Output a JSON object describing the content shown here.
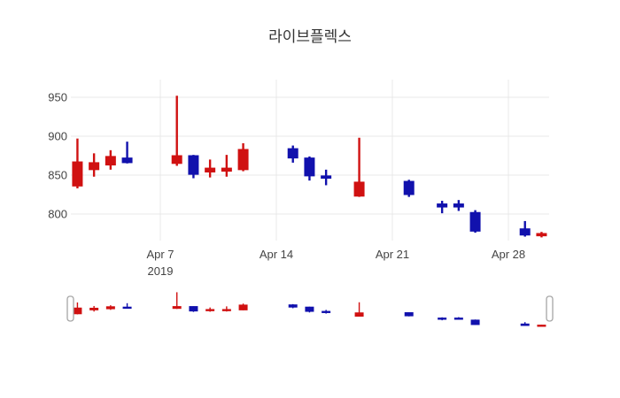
{
  "chart_data": {
    "type": "candlestick",
    "title": "라이브플렉스",
    "x": [
      "Apr 2",
      "Apr 3",
      "Apr 4",
      "Apr 5",
      "Apr 8",
      "Apr 9",
      "Apr 10",
      "Apr 11",
      "Apr 12",
      "Apr 15",
      "Apr 16",
      "Apr 17",
      "Apr 19",
      "Apr 22",
      "Apr 24",
      "Apr 25",
      "Apr 26",
      "Apr 29",
      "Apr 30"
    ],
    "days": [
      2,
      3,
      4,
      5,
      8,
      9,
      10,
      11,
      12,
      15,
      16,
      17,
      19,
      22,
      24,
      25,
      26,
      29,
      30
    ],
    "open": [
      836,
      857,
      863,
      872,
      865,
      875,
      854,
      855,
      857,
      884,
      872,
      849,
      823,
      842,
      813,
      813,
      802,
      781,
      772
    ],
    "high": [
      897,
      878,
      882,
      893,
      952,
      876,
      870,
      876,
      891,
      888,
      874,
      857,
      898,
      844,
      817,
      818,
      805,
      791,
      777
    ],
    "low": [
      833,
      848,
      857,
      865,
      862,
      846,
      847,
      848,
      855,
      866,
      843,
      837,
      822,
      822,
      801,
      804,
      776,
      771,
      770
    ],
    "close": [
      867,
      866,
      874,
      866,
      875,
      851,
      859,
      859,
      883,
      872,
      849,
      846,
      841,
      825,
      809,
      809,
      778,
      773,
      775
    ],
    "increasing_color": "#d01111",
    "decreasing_color": "#1111ad",
    "y_ticks": [
      950,
      900,
      850,
      800
    ],
    "x_ticks": [
      {
        "day": 7,
        "label": "Apr 7",
        "sublabel": "2019"
      },
      {
        "day": 14,
        "label": "Apr 14",
        "sublabel": ""
      },
      {
        "day": 21,
        "label": "Apr 21",
        "sublabel": ""
      },
      {
        "day": 28,
        "label": "Apr 28",
        "sublabel": ""
      }
    ],
    "ylim": [
      766,
      973
    ],
    "grid": true,
    "legend": false,
    "rangeslider": true
  },
  "colors": {
    "background": "#ffffff",
    "grid": "#e8e8e8",
    "tick_text": "#444444",
    "title_text": "#333333",
    "handle_border": "#a6a6a6",
    "handle_fill": "#ffffff"
  }
}
